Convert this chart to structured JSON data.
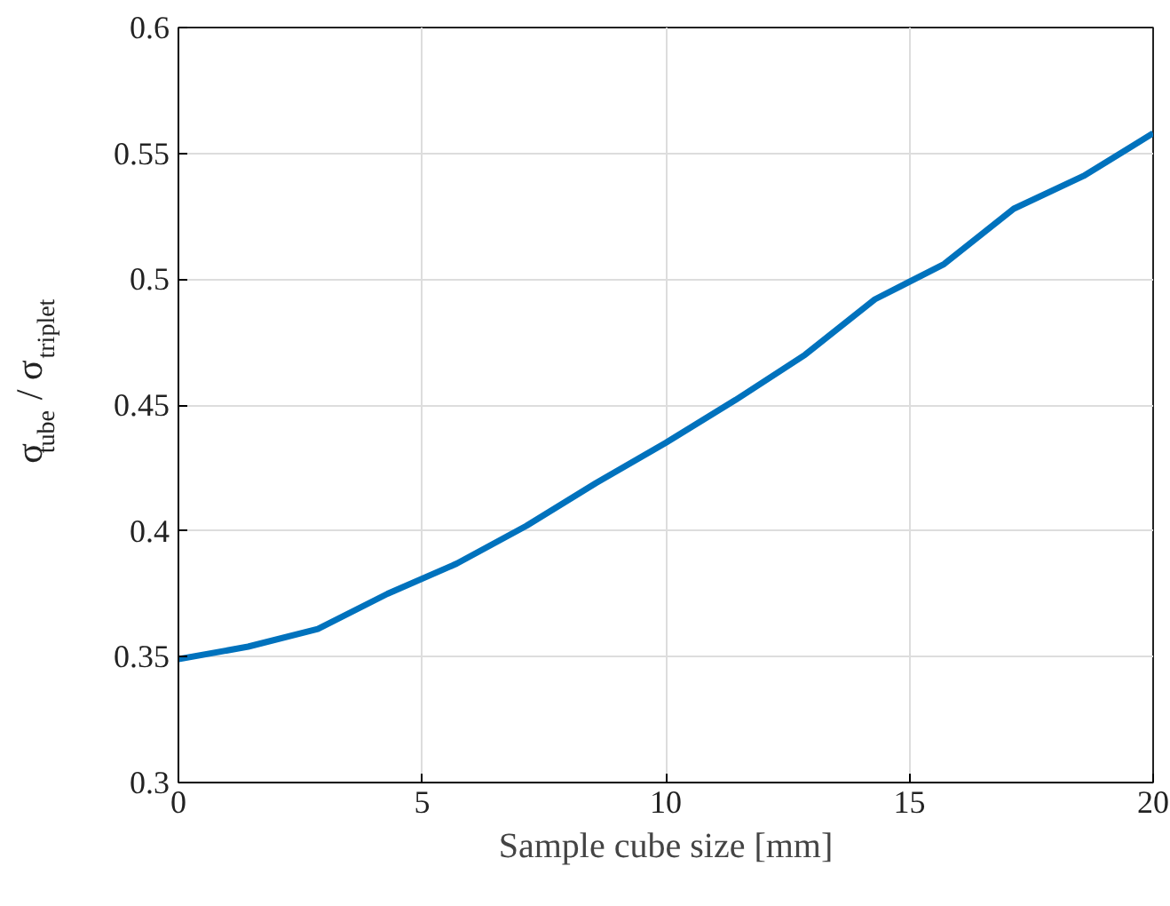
{
  "chart_data": {
    "type": "line",
    "xlabel": "Sample cube size [mm]",
    "ylabel": "σ$_{tube}$ / σ$_{triplet}$",
    "x": [
      0,
      1.43,
      2.86,
      4.29,
      5.71,
      7.14,
      8.57,
      10,
      11.43,
      12.86,
      14.29,
      15.71,
      17.14,
      18.57,
      20
    ],
    "series": [
      {
        "color": "#0072bd",
        "values": [
          0.349,
          0.354,
          0.361,
          0.375,
          0.387,
          0.402,
          0.419,
          0.435,
          0.452,
          0.47,
          0.492,
          0.506,
          0.528,
          0.541,
          0.558
        ]
      }
    ],
    "xlim": [
      0,
      20
    ],
    "ylim": [
      0.3,
      0.6
    ],
    "xticks": [
      0,
      5,
      10,
      15,
      20
    ],
    "yticks": [
      0.3,
      0.35,
      0.4,
      0.45,
      0.5,
      0.55,
      0.6
    ],
    "grid": true,
    "marker": "none",
    "line_style": "solid"
  }
}
